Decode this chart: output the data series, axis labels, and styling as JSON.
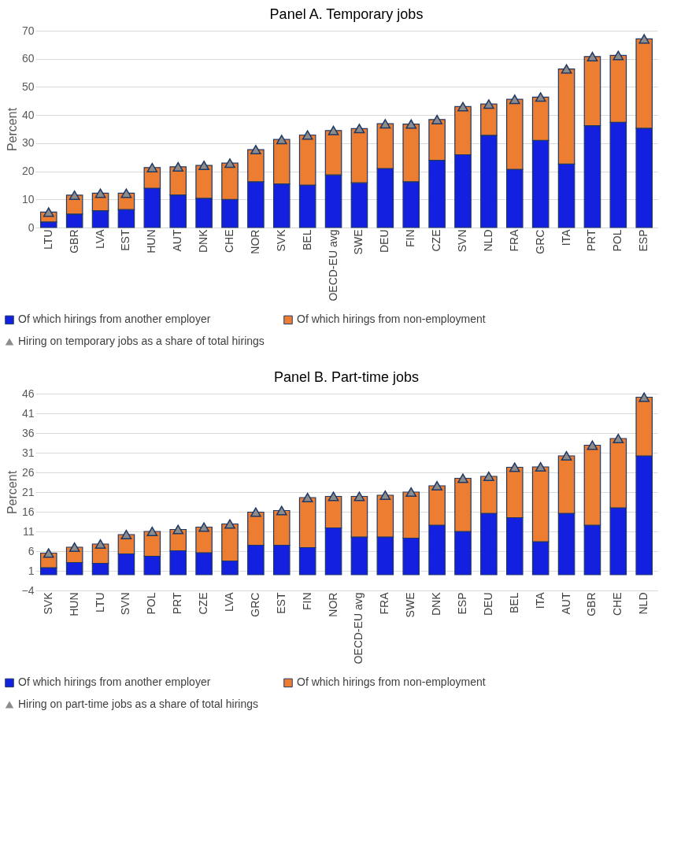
{
  "chart_data": [
    {
      "type": "bar",
      "title": "Panel A. Temporary jobs",
      "ylabel": "Percent",
      "stacked": true,
      "grid": "y",
      "legend": "bottom",
      "categories": [
        "LTU",
        "GBR",
        "LVA",
        "EST",
        "HUN",
        "AUT",
        "DNK",
        "CHE",
        "NOR",
        "SVK",
        "BEL",
        "OECD-EU avg",
        "SWE",
        "DEU",
        "FIN",
        "CZE",
        "SVN",
        "NLD",
        "FRA",
        "GRC",
        "ITA",
        "PRT",
        "POL",
        "ESP"
      ],
      "ylim": [
        0,
        70
      ],
      "yticks": [
        0,
        10,
        20,
        30,
        40,
        50,
        60,
        70
      ],
      "series": [
        {
          "name": "Of which hirings from another employer",
          "color": "#1420e0",
          "values": [
            2.0,
            4.8,
            6.0,
            6.4,
            14.0,
            11.6,
            10.4,
            10.0,
            16.3,
            15.5,
            15.1,
            18.7,
            15.9,
            21.0,
            16.3,
            23.9,
            25.9,
            32.8,
            20.7,
            31.0,
            22.6,
            36.2,
            37.4,
            35.3
          ]
        },
        {
          "name": "Of which hirings from non-employment",
          "color": "#ed7d31",
          "values": [
            3.5,
            6.7,
            6.2,
            5.8,
            7.3,
            10.0,
            11.7,
            12.9,
            11.4,
            15.8,
            17.8,
            15.8,
            19.3,
            15.9,
            20.5,
            14.5,
            17.1,
            11.1,
            24.9,
            15.4,
            33.8,
            24.6,
            23.8,
            31.8
          ]
        },
        {
          "name": "Hiring on temporary jobs as a share of total hirings",
          "type": "scatter",
          "marker": "triangle",
          "color": "#8c8c8c",
          "values": [
            5.5,
            11.5,
            12.2,
            12.2,
            21.3,
            21.6,
            22.1,
            22.9,
            27.7,
            31.3,
            32.9,
            34.5,
            35.2,
            36.9,
            36.8,
            38.4,
            43.0,
            43.9,
            45.6,
            46.4,
            56.4,
            60.8,
            61.2,
            67.1
          ]
        }
      ]
    },
    {
      "type": "bar",
      "title": "Panel B. Part-time jobs",
      "ylabel": "Percent",
      "stacked": true,
      "grid": "y",
      "legend": "bottom",
      "categories": [
        "SVK",
        "HUN",
        "LTU",
        "SVN",
        "POL",
        "PRT",
        "CZE",
        "LVA",
        "GRC",
        "EST",
        "FIN",
        "NOR",
        "OECD-EU avg",
        "FRA",
        "SWE",
        "DNK",
        "ESP",
        "DEU",
        "BEL",
        "ITA",
        "AUT",
        "GBR",
        "CHE",
        "NLD"
      ],
      "ylim": [
        -4,
        46
      ],
      "yticks": [
        -4,
        1,
        6,
        11,
        16,
        21,
        26,
        31,
        36,
        41,
        46
      ],
      "series": [
        {
          "name": "Of which hirings from another employer",
          "color": "#1420e0",
          "values": [
            1.8,
            3.1,
            2.9,
            5.3,
            4.7,
            6.1,
            5.6,
            3.5,
            7.5,
            7.5,
            6.9,
            11.9,
            9.6,
            9.6,
            9.3,
            12.6,
            11.0,
            15.6,
            14.5,
            8.4,
            15.6,
            12.6,
            17.0,
            30.2
          ]
        },
        {
          "name": "Of which hirings from non-employment",
          "color": "#ed7d31",
          "values": [
            3.7,
            3.9,
            4.9,
            4.9,
            6.3,
            5.4,
            6.5,
            9.4,
            8.4,
            8.8,
            12.7,
            8.0,
            10.3,
            10.6,
            11.7,
            10.0,
            13.5,
            9.4,
            12.8,
            19.0,
            14.6,
            20.3,
            17.6,
            14.9
          ]
        },
        {
          "name": "Hiring on part-time jobs as a share of total hirings",
          "type": "scatter",
          "marker": "triangle",
          "color": "#8c8c8c",
          "values": [
            5.5,
            7.0,
            7.8,
            10.2,
            11.0,
            11.5,
            12.1,
            12.9,
            15.9,
            16.3,
            19.6,
            19.9,
            19.9,
            20.2,
            21.0,
            22.6,
            24.5,
            25.0,
            27.3,
            27.4,
            30.2,
            32.9,
            34.6,
            45.1
          ]
        }
      ]
    }
  ]
}
